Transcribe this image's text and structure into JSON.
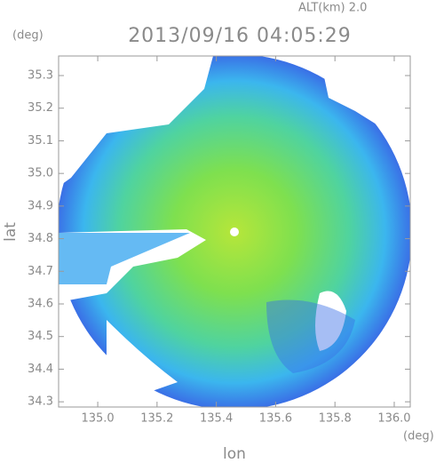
{
  "header": {
    "altitude": "ALT(km) 2.0",
    "title": "2013/09/16 04:05:29"
  },
  "axes": {
    "x": {
      "label": "lon",
      "unit": "(deg)",
      "lim": [
        134.868,
        136.054
      ],
      "ticks": [
        {
          "value": 135.0,
          "label": "135.0"
        },
        {
          "value": 135.2,
          "label": "135.2"
        },
        {
          "value": 135.4,
          "label": "135.4"
        },
        {
          "value": 135.6,
          "label": "135.6"
        },
        {
          "value": 135.8,
          "label": "135.8"
        },
        {
          "value": 136.0,
          "label": "136.0"
        }
      ]
    },
    "y": {
      "label": "lat",
      "unit": "(deg)",
      "lim": [
        34.284,
        35.36
      ],
      "ticks": [
        {
          "value": 34.3,
          "label": "34.3"
        },
        34.4,
        34.5,
        34.6,
        34.7,
        34.8,
        34.9,
        {
          "value": 35.0,
          "label": "35.0"
        },
        35.1,
        35.2,
        35.3
      ]
    }
  }
}
